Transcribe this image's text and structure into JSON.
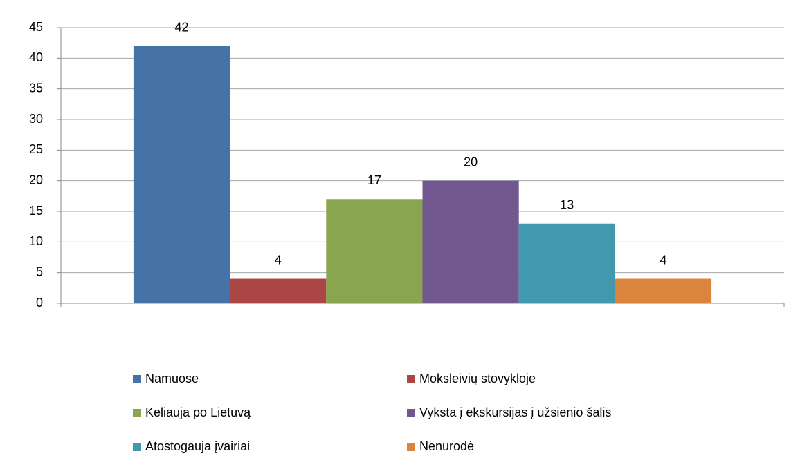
{
  "chart_data": {
    "type": "bar",
    "categories": [
      null
    ],
    "series": [
      {
        "name": "Namuose",
        "color": "#4572a7",
        "values": [
          42
        ]
      },
      {
        "name": "Moksleivių stovykloje",
        "color": "#aa4643",
        "values": [
          4
        ]
      },
      {
        "name": "Keliauja po Lietuvą",
        "color": "#89a54e",
        "values": [
          17
        ]
      },
      {
        "name": "Vyksta į ekskursijas į užsienio šalis",
        "color": "#71588f",
        "values": [
          20
        ]
      },
      {
        "name": "Atostogauja įvairiai",
        "color": "#4198af",
        "values": [
          13
        ]
      },
      {
        "name": "Nenurodė",
        "color": "#db843d",
        "values": [
          4
        ]
      }
    ],
    "ylim": [
      0,
      45
    ],
    "yticks": [
      0,
      5,
      10,
      15,
      20,
      25,
      30,
      35,
      40,
      45
    ],
    "grid": true,
    "legend": "bottom"
  }
}
